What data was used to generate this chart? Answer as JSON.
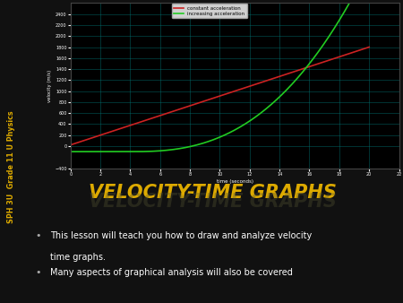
{
  "bg_color": "#111111",
  "side_bar_color": "#1a1a00",
  "side_label": "SPH 3U  Grade 11 U Physics",
  "side_label_color": "#ddaa00",
  "graph_bg": "#000000",
  "graph_grid_color": "#007070",
  "graph_x_label": "time (seconds)",
  "graph_y_label": "velocity (m/s)",
  "graph_xlim": [
    0,
    22
  ],
  "graph_ylim": [
    -400,
    2600
  ],
  "graph_x_ticks": [
    0,
    2,
    4,
    6,
    8,
    10,
    12,
    14,
    16,
    18,
    20,
    22
  ],
  "graph_y_ticks": [
    -400,
    0,
    200,
    400,
    600,
    800,
    1000,
    1200,
    1400,
    1600,
    1800,
    2000,
    2200,
    2400
  ],
  "red_line_label": "constant acceleration",
  "green_line_label": "increasing acceleration",
  "title_text": "VELOCITY-TIME GRAPHS",
  "title_color": "#ddaa00",
  "title_bg_top": "#5a5a5a",
  "title_bg_bot": "#3a3a3a",
  "title_border": "#888888",
  "bullet1_line1": "This lesson will teach you how to draw and analyze velocity",
  "bullet1_line2": "time graphs.",
  "bullet2": "Many aspects of graphical analysis will also be covered",
  "bullet_bg": "#555555",
  "bullet_border": "#999999",
  "bullet_text_color": "#ffffff",
  "bullet_dot_color": "#888888"
}
